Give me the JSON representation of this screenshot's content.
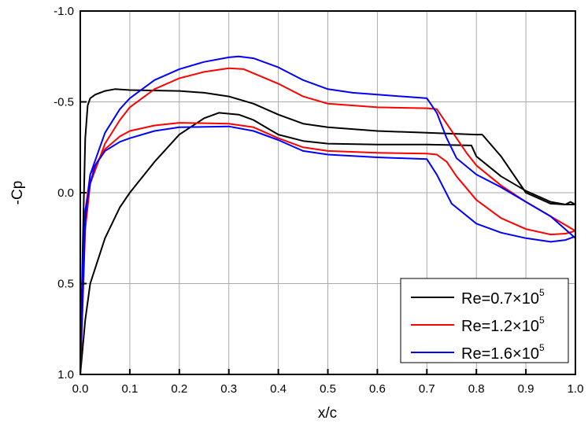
{
  "chart_data": {
    "type": "line",
    "title": "",
    "xlabel": "x/c",
    "ylabel": "-Cp",
    "xlim": [
      0,
      1
    ],
    "ylim": [
      1.0,
      -1.0
    ],
    "y_inverted": true,
    "grid": true,
    "legend_position": "bottom-right",
    "xticks": [
      "0.0",
      "0.1",
      "0.2",
      "0.3",
      "0.4",
      "0.5",
      "0.6",
      "0.7",
      "0.8",
      "0.9",
      "1.0"
    ],
    "yticks": [
      "-1.0",
      "-0.5",
      "0.0",
      "0.5",
      "1.0"
    ],
    "series": [
      {
        "name": "Re=0.7×10",
        "name_sup": "5",
        "color": "#000000",
        "upper": {
          "x": [
            0,
            0.005,
            0.01,
            0.015,
            0.02,
            0.03,
            0.05,
            0.07,
            0.1,
            0.2,
            0.25,
            0.3,
            0.35,
            0.4,
            0.45,
            0.5,
            0.6,
            0.7,
            0.8,
            0.812,
            0.85,
            0.9,
            0.95,
            0.98,
            0.99,
            1.0
          ],
          "y": [
            1.0,
            0.3,
            -0.3,
            -0.48,
            -0.52,
            -0.54,
            -0.56,
            -0.57,
            -0.565,
            -0.56,
            -0.55,
            -0.53,
            -0.49,
            -0.43,
            -0.38,
            -0.36,
            -0.34,
            -0.33,
            -0.32,
            -0.32,
            -0.2,
            0.0,
            0.06,
            0.065,
            0.05,
            0.065
          ]
        },
        "lower": {
          "x": [
            0,
            0.01,
            0.02,
            0.05,
            0.08,
            0.1,
            0.15,
            0.2,
            0.25,
            0.28,
            0.32,
            0.35,
            0.4,
            0.45,
            0.5,
            0.6,
            0.7,
            0.79,
            0.8,
            0.85,
            0.9,
            0.95,
            0.98,
            1.0
          ],
          "y": [
            1.0,
            0.7,
            0.5,
            0.25,
            0.08,
            0.0,
            -0.17,
            -0.32,
            -0.41,
            -0.44,
            -0.43,
            -0.4,
            -0.32,
            -0.285,
            -0.27,
            -0.265,
            -0.265,
            -0.26,
            -0.2,
            -0.09,
            -0.01,
            0.05,
            0.065,
            0.065
          ]
        }
      },
      {
        "name": "Re=1.2×10",
        "name_sup": "5",
        "color": "#ff0000",
        "upper": {
          "x": [
            0,
            0.01,
            0.02,
            0.05,
            0.08,
            0.1,
            0.15,
            0.2,
            0.25,
            0.3,
            0.33,
            0.4,
            0.45,
            0.5,
            0.6,
            0.7,
            0.72,
            0.74,
            0.78,
            0.8,
            0.85,
            0.9,
            0.95,
            1.0
          ],
          "y": [
            1.0,
            0.2,
            -0.05,
            -0.27,
            -0.4,
            -0.47,
            -0.57,
            -0.63,
            -0.665,
            -0.685,
            -0.68,
            -0.6,
            -0.53,
            -0.49,
            -0.47,
            -0.465,
            -0.46,
            -0.38,
            -0.22,
            -0.15,
            -0.04,
            0.05,
            0.13,
            0.21
          ]
        },
        "lower": {
          "x": [
            0,
            0.005,
            0.01,
            0.02,
            0.03,
            0.05,
            0.08,
            0.1,
            0.15,
            0.2,
            0.3,
            0.35,
            0.4,
            0.45,
            0.5,
            0.6,
            0.7,
            0.72,
            0.74,
            0.76,
            0.8,
            0.85,
            0.9,
            0.95,
            0.98,
            1.0
          ],
          "y": [
            1.0,
            0.5,
            0.1,
            -0.1,
            -0.15,
            -0.24,
            -0.31,
            -0.34,
            -0.37,
            -0.385,
            -0.38,
            -0.36,
            -0.3,
            -0.25,
            -0.23,
            -0.22,
            -0.215,
            -0.21,
            -0.17,
            -0.09,
            0.04,
            0.14,
            0.2,
            0.23,
            0.225,
            0.21
          ]
        }
      },
      {
        "name": "Re=1.6×10",
        "name_sup": "5",
        "color": "#0000ff",
        "upper": {
          "x": [
            0,
            0.01,
            0.02,
            0.05,
            0.08,
            0.1,
            0.15,
            0.2,
            0.25,
            0.3,
            0.32,
            0.35,
            0.4,
            0.45,
            0.5,
            0.55,
            0.6,
            0.7,
            0.72,
            0.74,
            0.76,
            0.8,
            0.85,
            0.9,
            0.95,
            1.0
          ],
          "y": [
            1.0,
            0.15,
            -0.1,
            -0.33,
            -0.46,
            -0.52,
            -0.62,
            -0.68,
            -0.72,
            -0.745,
            -0.75,
            -0.74,
            -0.69,
            -0.62,
            -0.57,
            -0.55,
            -0.54,
            -0.52,
            -0.44,
            -0.3,
            -0.19,
            -0.1,
            -0.03,
            0.05,
            0.13,
            0.25
          ]
        },
        "lower": {
          "x": [
            0,
            0.005,
            0.01,
            0.02,
            0.03,
            0.05,
            0.08,
            0.1,
            0.15,
            0.2,
            0.3,
            0.35,
            0.4,
            0.45,
            0.5,
            0.6,
            0.7,
            0.72,
            0.75,
            0.8,
            0.85,
            0.9,
            0.95,
            0.98,
            1.0
          ],
          "y": [
            1.0,
            0.4,
            0.1,
            -0.05,
            -0.15,
            -0.23,
            -0.28,
            -0.3,
            -0.34,
            -0.36,
            -0.365,
            -0.34,
            -0.29,
            -0.23,
            -0.21,
            -0.195,
            -0.185,
            -0.1,
            0.06,
            0.17,
            0.22,
            0.25,
            0.27,
            0.26,
            0.24
          ]
        }
      }
    ]
  }
}
